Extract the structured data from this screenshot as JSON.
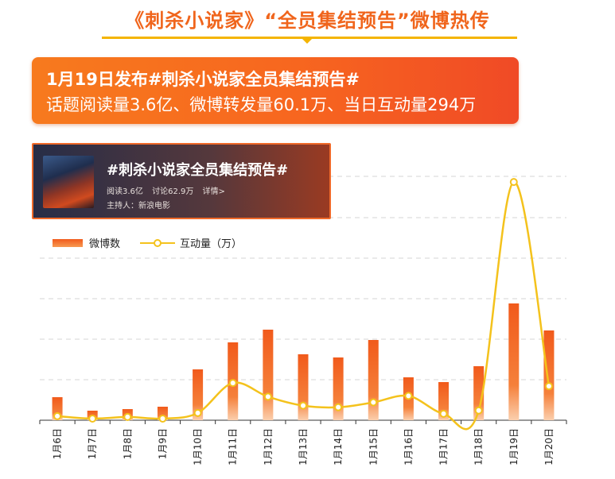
{
  "title": "《刺杀小说家》“全员集结预告”微博热传",
  "banner": {
    "line1": "1月19日发布#刺杀小说家全员集结预告#",
    "line2": "话题阅读量3.6亿、微博转发量60.1万、当日互动量294万"
  },
  "topic_card": {
    "topic": "#刺杀小说家全员集结预告#",
    "reads": "阅读3.6亿",
    "discuss": "讨论62.9万",
    "detail": "详情>",
    "host": "主持人：新浪电影"
  },
  "colors": {
    "bar": "#f15a1b",
    "line": "#f4c21c",
    "accent": "#f0651c"
  },
  "chart_data": {
    "type": "bar",
    "categories": [
      "1月6日",
      "1月7日",
      "1月8日",
      "1月9日",
      "1月10日",
      "1月11日",
      "1月12日",
      "1月13日",
      "1月14日",
      "1月15日",
      "1月16日",
      "1月17日",
      "1月18日",
      "1月19日",
      "1月20日"
    ],
    "series": [
      {
        "name": "微博数",
        "type": "bar",
        "values": [
          29,
          12,
          14,
          17,
          64,
          98,
          114,
          83,
          79,
          101,
          54,
          48,
          68,
          147,
          113
        ]
      },
      {
        "name": "互动量（万）",
        "type": "line",
        "values": [
          5,
          2,
          4,
          2,
          9,
          46,
          29,
          18,
          16,
          22,
          30,
          8,
          12,
          294,
          42
        ]
      }
    ],
    "grid": true,
    "legend": "top-left"
  }
}
